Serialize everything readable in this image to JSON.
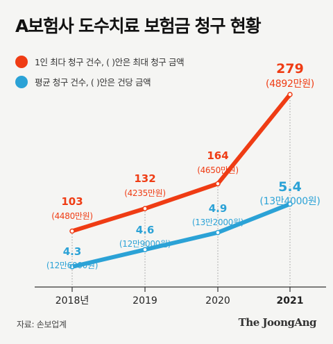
{
  "title": "A보험사 도수치료 보험금 청구 현황",
  "legend": [
    {
      "label": "1인 최다 청구 건수, ( )안은 최대 청구 금액",
      "color": "#ef3c14"
    },
    {
      "label": "평균 청구 건수, ( )안은 건당 금액",
      "color": "#2ba2d6"
    }
  ],
  "source": "자료: 손보업계",
  "brand": "The JoongAng",
  "chart_data": {
    "type": "line",
    "categories": [
      "2018년",
      "2019",
      "2020",
      "2021"
    ],
    "series": [
      {
        "name": "1인 최다 청구 건수",
        "color": "#ef3c14",
        "values": [
          103,
          132,
          164,
          279
        ],
        "value_labels": [
          "103",
          "132",
          "164",
          "279"
        ],
        "amount_labels": [
          "(4480만원)",
          "(4235만원)",
          "(4650만원)",
          "(4892만원)"
        ]
      },
      {
        "name": "평균 청구 건수",
        "color": "#2ba2d6",
        "values": [
          4.3,
          4.6,
          4.9,
          5.4
        ],
        "value_labels": [
          "4.3",
          "4.6",
          "4.9",
          "5.4"
        ],
        "amount_labels": [
          "(12만6000원)",
          "(12만9000원)",
          "(13만2000원)",
          "(13만4000원)"
        ]
      }
    ],
    "grid": false,
    "legend_position": "top-left"
  }
}
